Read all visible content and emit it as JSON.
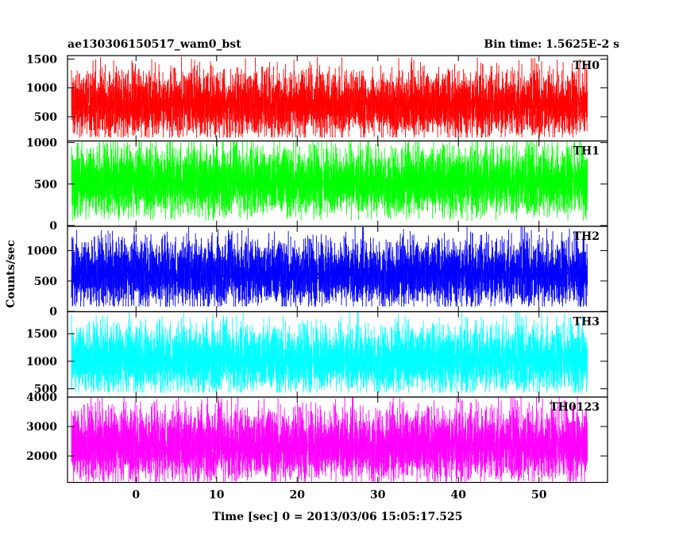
{
  "chart_data": {
    "type": "line",
    "title_left": "ae130306150517_wam0_bst",
    "title_right": "Bin time: 1.5625E-2 s",
    "xlabel": "Time [sec] 0 = 2013/03/06 15:05:17.525",
    "ylabel": "Counts/sec",
    "xlim": [
      -8.5,
      58.5
    ],
    "data_x_range": [
      -8,
      56
    ],
    "xticks": [
      0,
      10,
      20,
      30,
      40,
      50
    ],
    "xtick_labels": [
      "0",
      "10",
      "20",
      "30",
      "40",
      "50"
    ],
    "grid": false,
    "panels": [
      {
        "name": "TH0",
        "color": "#ff0000",
        "ylim": [
          80,
          1560
        ],
        "yticks": [
          500,
          1000,
          1500
        ],
        "ytick_labels": [
          "500",
          "1000",
          "1500"
        ],
        "approx_mean": 750,
        "approx_min": 140,
        "approx_max": 1550
      },
      {
        "name": "TH1",
        "color": "#00ff00",
        "ylim": [
          -10,
          1020
        ],
        "yticks": [
          0,
          500,
          1000
        ],
        "ytick_labels": [
          "0",
          "500",
          "1000"
        ],
        "approx_mean": 560,
        "approx_min": 60,
        "approx_max": 1010
      },
      {
        "name": "TH2",
        "color": "#0000ff",
        "ylim": [
          -5,
          1400
        ],
        "yticks": [
          0,
          500,
          1000
        ],
        "ytick_labels": [
          "0",
          "500",
          "1000"
        ],
        "approx_mean": 660,
        "approx_min": 80,
        "approx_max": 1390
      },
      {
        "name": "TH3",
        "color": "#00ffff",
        "ylim": [
          350,
          1900
        ],
        "yticks": [
          500,
          1000,
          1500
        ],
        "ytick_labels": [
          "500",
          "1000",
          "1500"
        ],
        "approx_mean": 1080,
        "approx_min": 430,
        "approx_max": 1890
      },
      {
        "name": "TH0123",
        "color": "#ff00ff",
        "ylim": [
          1100,
          4000
        ],
        "yticks": [
          2000,
          3000,
          4000
        ],
        "ytick_labels": [
          "2000",
          "3000",
          "4000"
        ],
        "approx_mean": 2450,
        "approx_min": 1130,
        "approx_max": 3990
      }
    ]
  }
}
